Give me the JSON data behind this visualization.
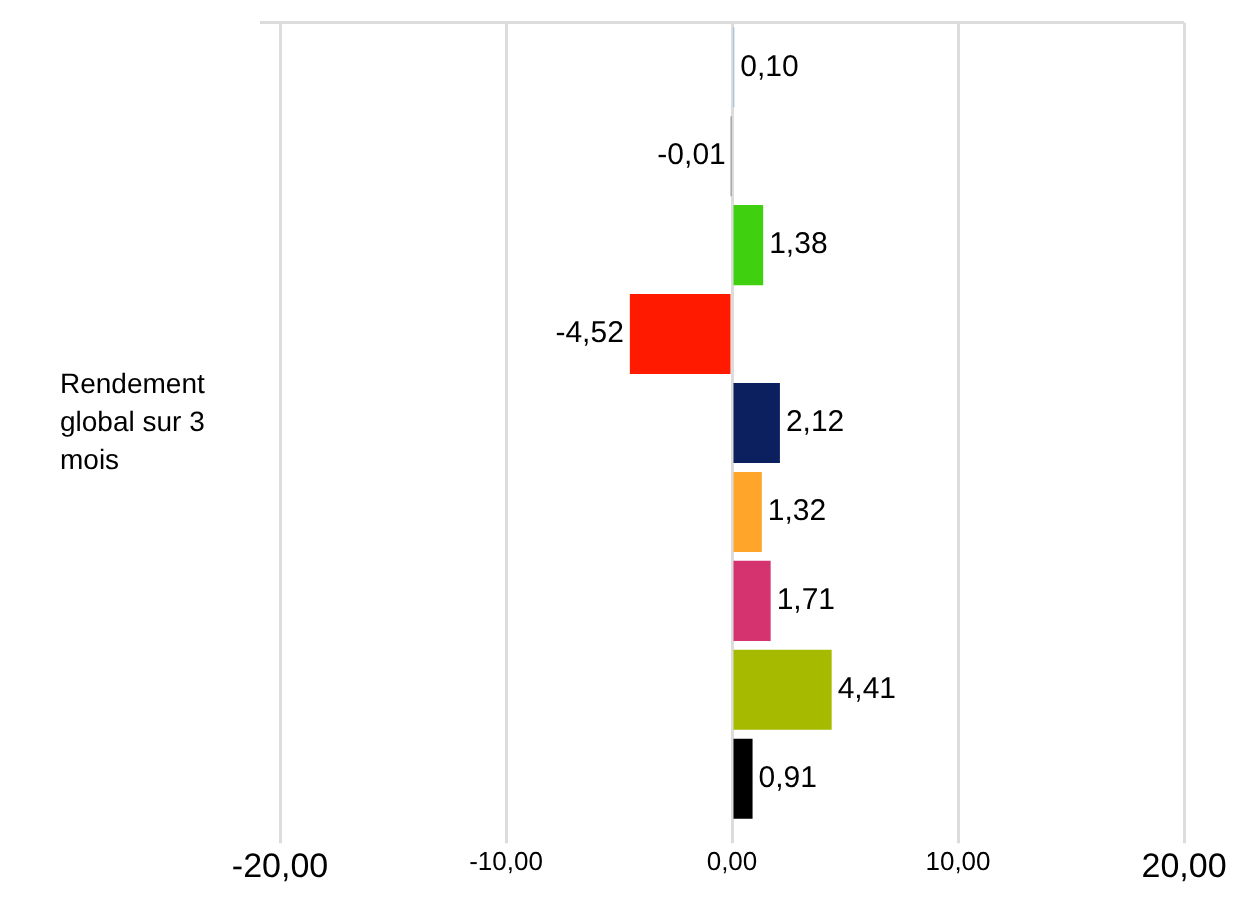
{
  "chart_data": {
    "type": "bar",
    "orientation": "horizontal",
    "ylabel": "Rendement global sur 3 mois",
    "categories": [
      null,
      null,
      null,
      null,
      null,
      null,
      null,
      null,
      null
    ],
    "values": [
      0.1,
      -0.01,
      1.38,
      -4.52,
      2.12,
      1.32,
      1.71,
      4.41,
      0.91
    ],
    "value_labels": [
      "0,10",
      "-0,01",
      "1,38",
      "-4,52",
      "2,12",
      "1,32",
      "1,71",
      "4,41",
      "0,91"
    ],
    "colors": [
      "#7fa7d9",
      "#9a9a9a",
      "#3fd10f",
      "#ff1a00",
      "#0c1f5e",
      "#ffa52a",
      "#d4336f",
      "#a6bb00",
      "#000000"
    ],
    "xlim": [
      -20,
      20
    ],
    "xticks": [
      {
        "value": -20,
        "label": "-20,00"
      },
      {
        "value": -10,
        "label": "-10,00"
      },
      {
        "value": 0,
        "label": "0,00"
      },
      {
        "value": 10,
        "label": "10,00"
      },
      {
        "value": 20,
        "label": "20,00"
      }
    ],
    "grid": "x",
    "legend": false
  }
}
